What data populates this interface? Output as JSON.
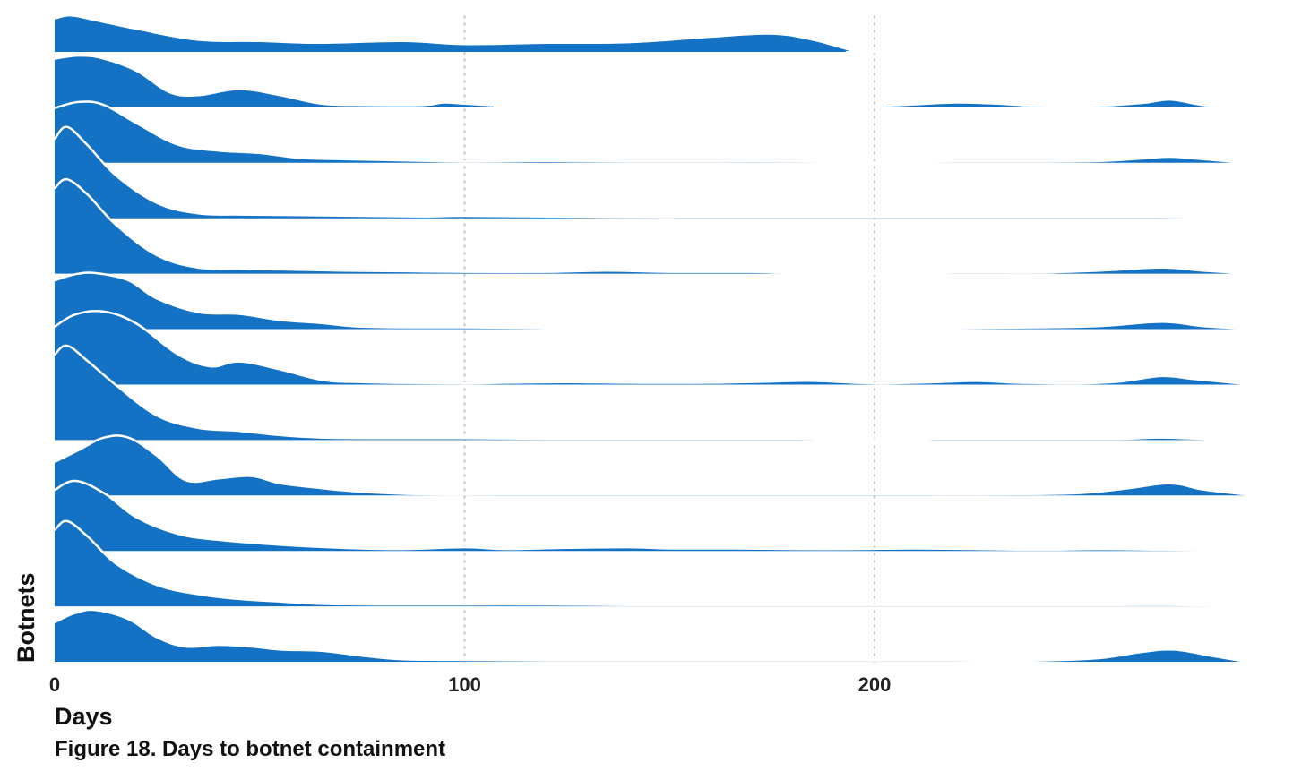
{
  "caption": "Figure 18.  Days to botnet containment",
  "chart_data": {
    "type": "ridgeline",
    "xlabel": "Days",
    "ylabel": "Botnets",
    "xlim": [
      0,
      290
    ],
    "xticks": [
      0,
      100,
      200
    ],
    "grid": "vertical dotted at x ticks",
    "color": "#1472C4",
    "outline_color": "#ffffff",
    "series_count": 12,
    "series": [
      {
        "x_range": [
          0,
          281
        ],
        "knots": [
          [
            0,
            0.55
          ],
          [
            4,
            0.6
          ],
          [
            10,
            0.52
          ],
          [
            20,
            0.38
          ],
          [
            35,
            0.2
          ],
          [
            50,
            0.18
          ],
          [
            65,
            0.15
          ],
          [
            85,
            0.18
          ],
          [
            100,
            0.13
          ],
          [
            120,
            0.15
          ],
          [
            140,
            0.16
          ],
          [
            160,
            0.25
          ],
          [
            175,
            0.3
          ],
          [
            185,
            0.2
          ],
          [
            195,
            0.02
          ],
          [
            200,
            0
          ],
          [
            270,
            0
          ],
          [
            273,
            0.05
          ],
          [
            276,
            0
          ],
          [
            281,
            0
          ]
        ]
      },
      {
        "x_range": [
          0,
          282
        ],
        "knots": [
          [
            0,
            0.8
          ],
          [
            6,
            0.85
          ],
          [
            12,
            0.8
          ],
          [
            20,
            0.6
          ],
          [
            28,
            0.25
          ],
          [
            35,
            0.2
          ],
          [
            45,
            0.3
          ],
          [
            55,
            0.2
          ],
          [
            65,
            0.06
          ],
          [
            75,
            0.04
          ],
          [
            90,
            0.04
          ],
          [
            95,
            0.08
          ],
          [
            100,
            0.06
          ],
          [
            110,
            0.02
          ],
          [
            115,
            0
          ],
          [
            195,
            0
          ],
          [
            200,
            0.02
          ],
          [
            210,
            0.05
          ],
          [
            220,
            0.08
          ],
          [
            230,
            0.06
          ],
          [
            240,
            0.02
          ],
          [
            250,
            0.01
          ],
          [
            265,
            0.07
          ],
          [
            272,
            0.13
          ],
          [
            278,
            0.06
          ],
          [
            282,
            0.02
          ]
        ]
      },
      {
        "x_range": [
          0,
          287
        ],
        "knots": [
          [
            0,
            0.9
          ],
          [
            6,
            1.0
          ],
          [
            12,
            0.95
          ],
          [
            20,
            0.65
          ],
          [
            30,
            0.3
          ],
          [
            40,
            0.2
          ],
          [
            50,
            0.16
          ],
          [
            60,
            0.08
          ],
          [
            70,
            0.06
          ],
          [
            85,
            0.04
          ],
          [
            100,
            0.02
          ],
          [
            120,
            0.03
          ],
          [
            140,
            0.02
          ],
          [
            160,
            0.02
          ],
          [
            180,
            0.02
          ],
          [
            200,
            0.01
          ],
          [
            220,
            0.02
          ],
          [
            240,
            0.02
          ],
          [
            255,
            0.03
          ],
          [
            265,
            0.07
          ],
          [
            272,
            0.1
          ],
          [
            280,
            0.06
          ],
          [
            287,
            0.02
          ]
        ]
      },
      {
        "x_range": [
          0,
          280
        ],
        "knots": [
          [
            0,
            1.3
          ],
          [
            3,
            1.5
          ],
          [
            8,
            1.2
          ],
          [
            15,
            0.7
          ],
          [
            25,
            0.25
          ],
          [
            35,
            0.08
          ],
          [
            45,
            0.06
          ],
          [
            60,
            0.05
          ],
          [
            75,
            0.04
          ],
          [
            90,
            0.03
          ],
          [
            100,
            0.04
          ],
          [
            120,
            0.03
          ],
          [
            140,
            0.02
          ],
          [
            160,
            0.02
          ],
          [
            180,
            0.02
          ],
          [
            200,
            0.02
          ],
          [
            220,
            0.02
          ],
          [
            240,
            0.02
          ],
          [
            260,
            0.02
          ],
          [
            270,
            0.02
          ],
          [
            280,
            0.01
          ]
        ]
      },
      {
        "x_range": [
          0,
          287
        ],
        "knots": [
          [
            0,
            1.4
          ],
          [
            3,
            1.55
          ],
          [
            8,
            1.3
          ],
          [
            15,
            0.8
          ],
          [
            25,
            0.3
          ],
          [
            35,
            0.1
          ],
          [
            45,
            0.08
          ],
          [
            55,
            0.07
          ],
          [
            70,
            0.05
          ],
          [
            85,
            0.04
          ],
          [
            100,
            0.03
          ],
          [
            120,
            0.03
          ],
          [
            135,
            0.05
          ],
          [
            150,
            0.03
          ],
          [
            170,
            0.03
          ],
          [
            180,
            0.01
          ],
          [
            190,
            0
          ],
          [
            215,
            0
          ],
          [
            220,
            0.02
          ],
          [
            240,
            0.02
          ],
          [
            255,
            0.05
          ],
          [
            270,
            0.1
          ],
          [
            280,
            0.05
          ],
          [
            287,
            0.02
          ]
        ]
      },
      {
        "x_range": [
          0,
          288
        ],
        "knots": [
          [
            0,
            0.8
          ],
          [
            5,
            0.9
          ],
          [
            10,
            0.92
          ],
          [
            18,
            0.8
          ],
          [
            25,
            0.5
          ],
          [
            35,
            0.28
          ],
          [
            45,
            0.25
          ],
          [
            55,
            0.15
          ],
          [
            65,
            0.1
          ],
          [
            75,
            0.04
          ],
          [
            90,
            0.03
          ],
          [
            100,
            0.03
          ],
          [
            120,
            0.02
          ],
          [
            140,
            0.02
          ],
          [
            160,
            0.02
          ],
          [
            180,
            0.02
          ],
          [
            200,
            0.02
          ],
          [
            220,
            0.02
          ],
          [
            240,
            0.03
          ],
          [
            255,
            0.05
          ],
          [
            270,
            0.12
          ],
          [
            280,
            0.05
          ],
          [
            288,
            0.02
          ]
        ]
      },
      {
        "x_range": [
          0,
          289
        ],
        "knots": [
          [
            0,
            0.95
          ],
          [
            5,
            1.15
          ],
          [
            12,
            1.2
          ],
          [
            20,
            1.0
          ],
          [
            30,
            0.5
          ],
          [
            38,
            0.3
          ],
          [
            45,
            0.38
          ],
          [
            55,
            0.25
          ],
          [
            65,
            0.08
          ],
          [
            75,
            0.04
          ],
          [
            100,
            0.02
          ],
          [
            110,
            0.03
          ],
          [
            125,
            0.04
          ],
          [
            140,
            0.03
          ],
          [
            160,
            0.03
          ],
          [
            175,
            0.05
          ],
          [
            185,
            0.06
          ],
          [
            200,
            0.02
          ],
          [
            215,
            0.04
          ],
          [
            225,
            0.06
          ],
          [
            235,
            0.03
          ],
          [
            250,
            0.02
          ],
          [
            260,
            0.05
          ],
          [
            270,
            0.14
          ],
          [
            278,
            0.09
          ],
          [
            289,
            0.02
          ]
        ]
      },
      {
        "x_range": [
          0,
          283
        ],
        "knots": [
          [
            0,
            1.4
          ],
          [
            3,
            1.55
          ],
          [
            8,
            1.3
          ],
          [
            15,
            0.9
          ],
          [
            25,
            0.4
          ],
          [
            35,
            0.2
          ],
          [
            45,
            0.15
          ],
          [
            55,
            0.08
          ],
          [
            65,
            0.04
          ],
          [
            80,
            0.03
          ],
          [
            100,
            0.03
          ],
          [
            120,
            0.02
          ],
          [
            140,
            0.02
          ],
          [
            160,
            0.02
          ],
          [
            180,
            0.02
          ],
          [
            190,
            0.01
          ],
          [
            198,
            0
          ],
          [
            212,
            0
          ],
          [
            215,
            0.02
          ],
          [
            240,
            0.02
          ],
          [
            260,
            0.02
          ],
          [
            270,
            0.04
          ],
          [
            283,
            0.01
          ]
        ]
      },
      {
        "x_range": [
          0,
          290
        ],
        "knots": [
          [
            0,
            0.55
          ],
          [
            6,
            0.75
          ],
          [
            12,
            0.95
          ],
          [
            18,
            0.95
          ],
          [
            25,
            0.65
          ],
          [
            32,
            0.25
          ],
          [
            40,
            0.28
          ],
          [
            48,
            0.32
          ],
          [
            55,
            0.2
          ],
          [
            65,
            0.12
          ],
          [
            75,
            0.06
          ],
          [
            90,
            0.02
          ],
          [
            110,
            0.02
          ],
          [
            130,
            0.02
          ],
          [
            150,
            0.02
          ],
          [
            170,
            0.02
          ],
          [
            190,
            0.02
          ],
          [
            210,
            0.02
          ],
          [
            230,
            0.02
          ],
          [
            250,
            0.04
          ],
          [
            262,
            0.12
          ],
          [
            272,
            0.2
          ],
          [
            280,
            0.1
          ],
          [
            290,
            0.02
          ]
        ]
      },
      {
        "x_range": [
          0,
          283
        ],
        "knots": [
          [
            0,
            1.0
          ],
          [
            5,
            1.15
          ],
          [
            12,
            0.95
          ],
          [
            20,
            0.55
          ],
          [
            30,
            0.28
          ],
          [
            40,
            0.18
          ],
          [
            55,
            0.1
          ],
          [
            70,
            0.05
          ],
          [
            85,
            0.03
          ],
          [
            100,
            0.06
          ],
          [
            110,
            0.03
          ],
          [
            125,
            0.05
          ],
          [
            140,
            0.06
          ],
          [
            150,
            0.04
          ],
          [
            165,
            0.04
          ],
          [
            180,
            0.03
          ],
          [
            195,
            0.03
          ],
          [
            210,
            0.04
          ],
          [
            225,
            0.03
          ],
          [
            240,
            0.02
          ],
          [
            255,
            0.03
          ],
          [
            270,
            0.02
          ],
          [
            283,
            0.01
          ]
        ]
      },
      {
        "x_range": [
          0,
          286
        ],
        "knots": [
          [
            0,
            1.25
          ],
          [
            3,
            1.4
          ],
          [
            8,
            1.15
          ],
          [
            15,
            0.7
          ],
          [
            25,
            0.35
          ],
          [
            35,
            0.2
          ],
          [
            45,
            0.12
          ],
          [
            55,
            0.08
          ],
          [
            65,
            0.04
          ],
          [
            80,
            0.03
          ],
          [
            100,
            0.03
          ],
          [
            120,
            0.03
          ],
          [
            140,
            0.02
          ],
          [
            160,
            0.02
          ],
          [
            180,
            0.02
          ],
          [
            200,
            0.02
          ],
          [
            220,
            0.02
          ],
          [
            240,
            0.02
          ],
          [
            260,
            0.02
          ],
          [
            275,
            0.02
          ],
          [
            286,
            0.01
          ]
        ]
      },
      {
        "x_range": [
          0,
          289
        ],
        "knots": [
          [
            0,
            0.65
          ],
          [
            5,
            0.8
          ],
          [
            10,
            0.85
          ],
          [
            18,
            0.7
          ],
          [
            25,
            0.4
          ],
          [
            32,
            0.25
          ],
          [
            40,
            0.28
          ],
          [
            48,
            0.25
          ],
          [
            55,
            0.2
          ],
          [
            65,
            0.18
          ],
          [
            75,
            0.1
          ],
          [
            85,
            0.04
          ],
          [
            100,
            0.03
          ],
          [
            120,
            0.02
          ],
          [
            140,
            0.02
          ],
          [
            160,
            0.02
          ],
          [
            180,
            0.02
          ],
          [
            200,
            0.02
          ],
          [
            220,
            0.02
          ],
          [
            240,
            0.02
          ],
          [
            255,
            0.06
          ],
          [
            265,
            0.16
          ],
          [
            273,
            0.2
          ],
          [
            282,
            0.1
          ],
          [
            289,
            0.02
          ]
        ]
      }
    ]
  }
}
